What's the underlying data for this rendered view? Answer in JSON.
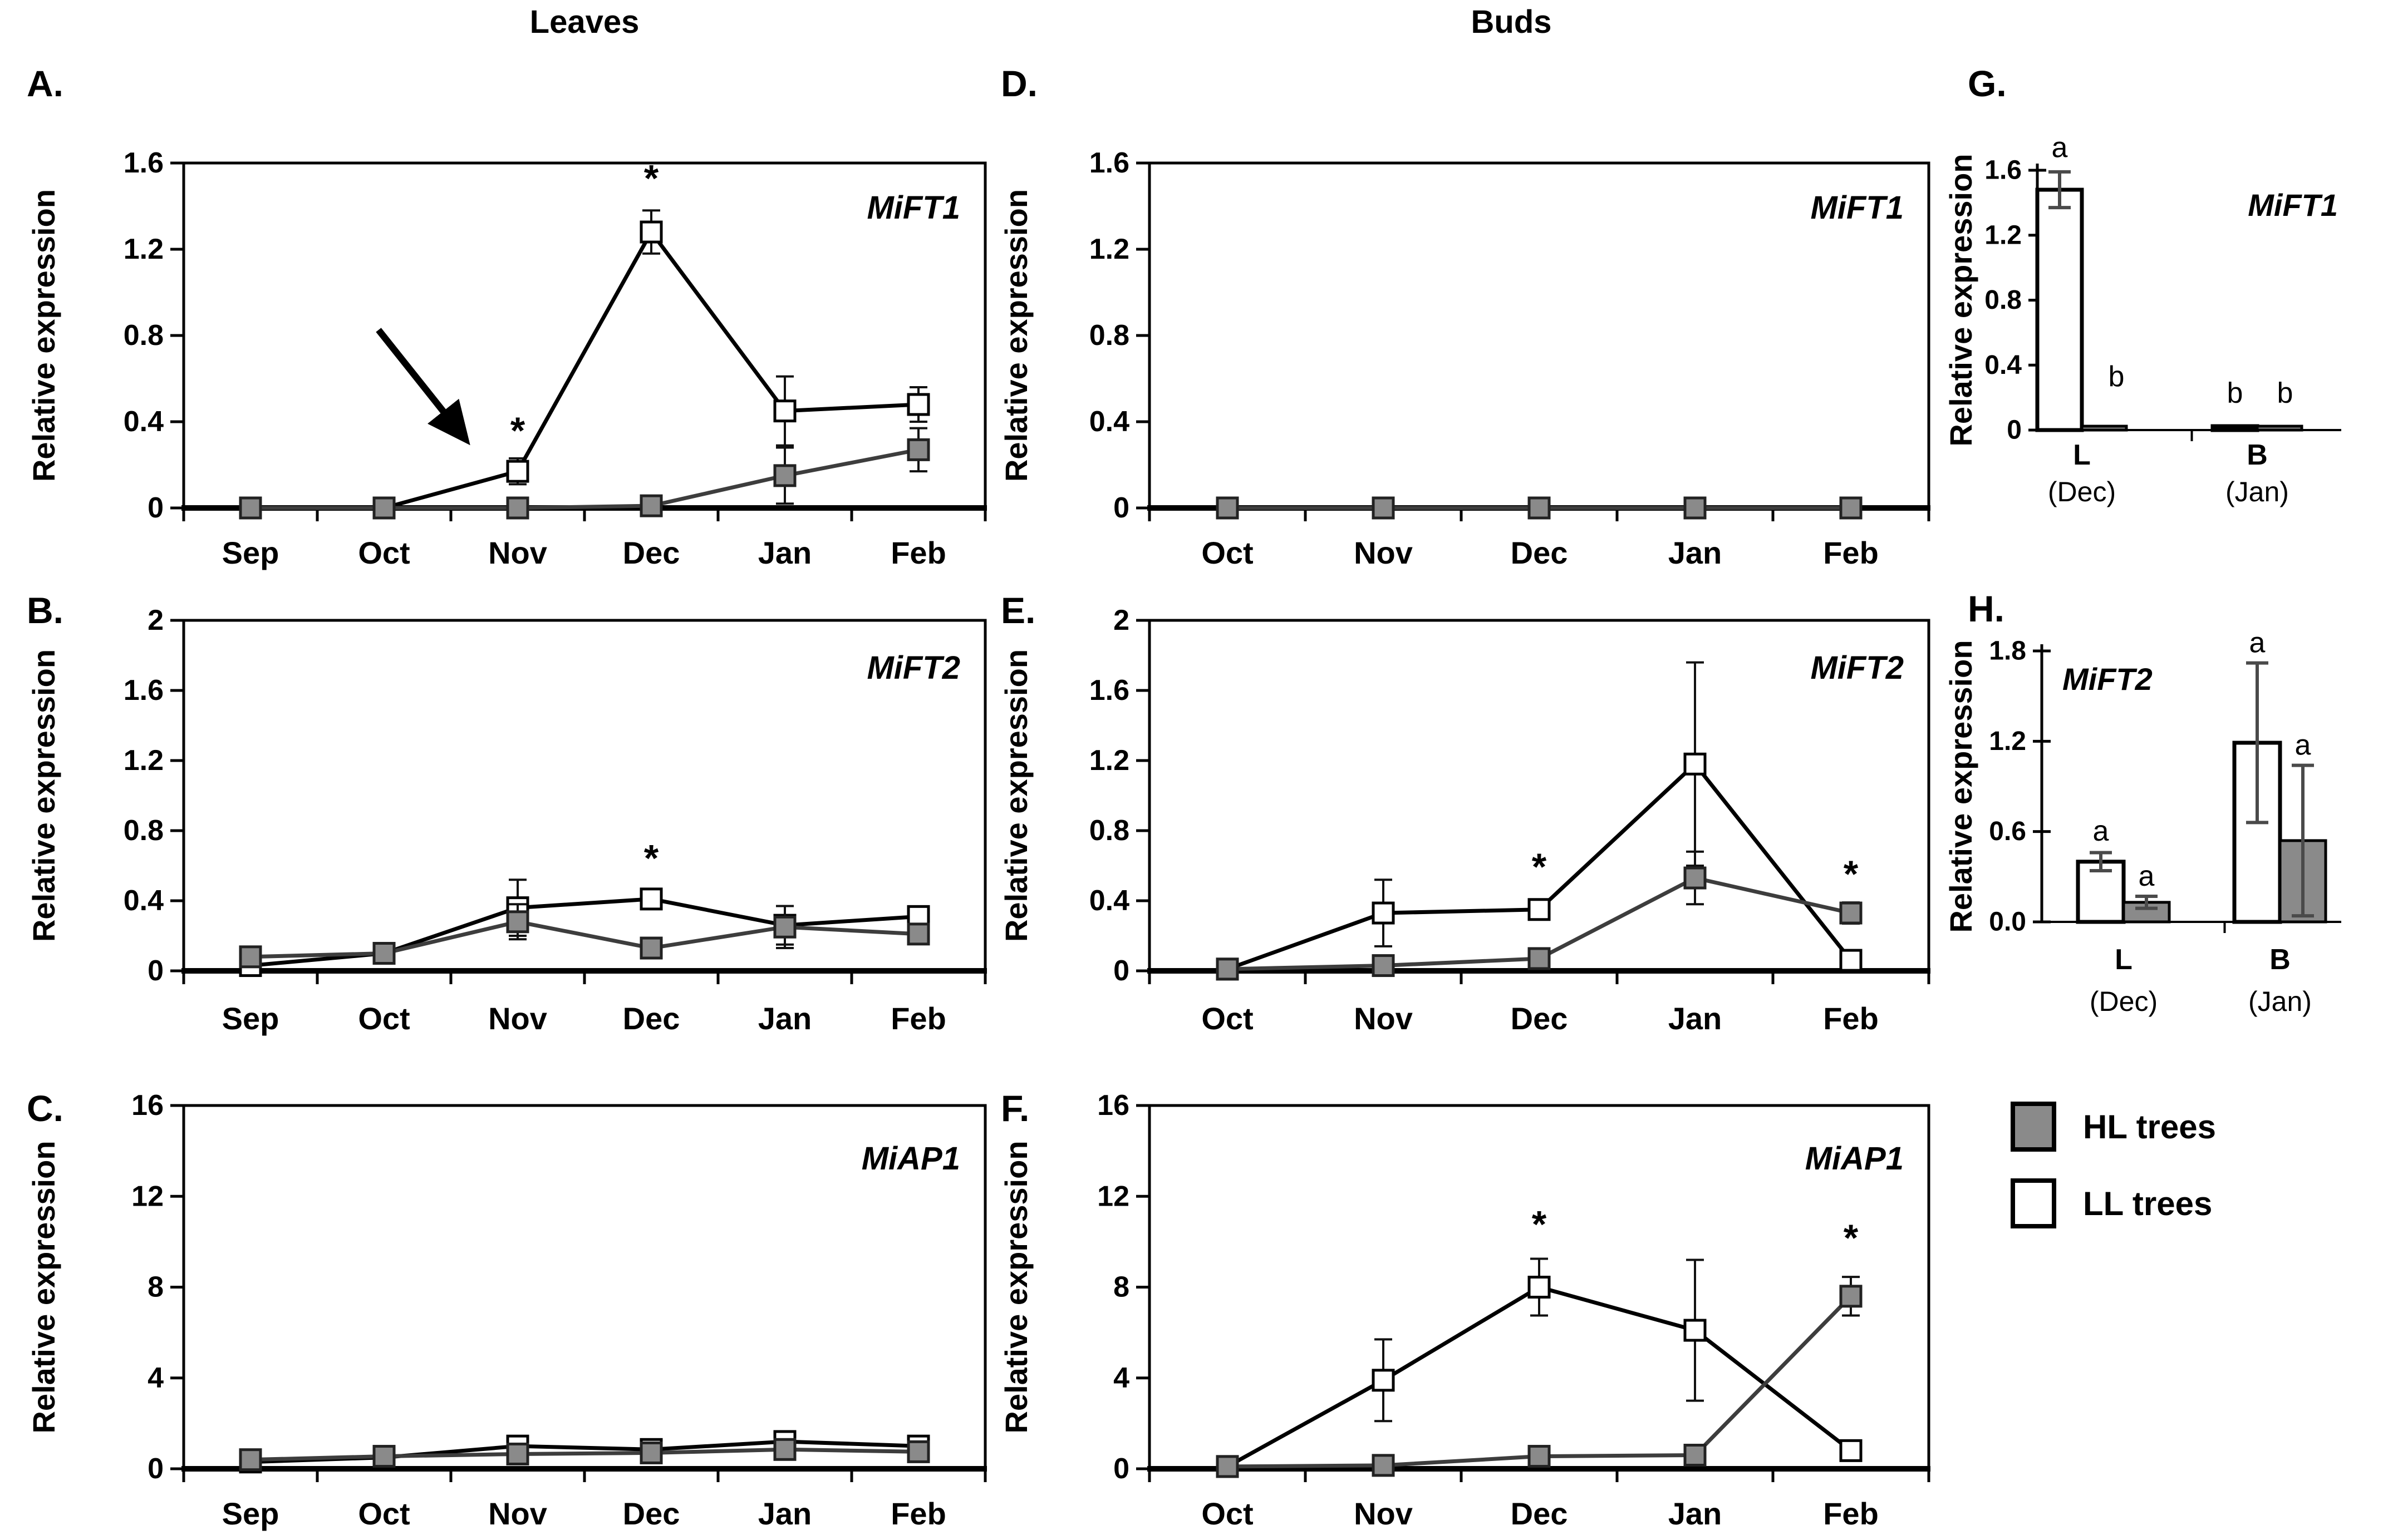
{
  "headers": {
    "left": "Leaves",
    "right": "Buds"
  },
  "legend": {
    "items": [
      {
        "key": "HL",
        "label": "HL trees",
        "swatch": "#8a8a8a"
      },
      {
        "key": "LL",
        "label": "LL trees",
        "swatch": "#ffffff"
      }
    ]
  },
  "colors": {
    "ll_fill": "#ffffff",
    "hl_fill": "#8a8a8a",
    "ll_line": "#000000",
    "hl_line": "#3d3d3d",
    "err": "#111111",
    "bar_err": "#4a4a4a"
  },
  "chart_data": [
    {
      "id": "A",
      "panel_label": "A.",
      "type": "line",
      "title": "MiFT1",
      "ylabel": "Relative expression",
      "categories": [
        "Sep",
        "Oct",
        "Nov",
        "Dec",
        "Jan",
        "Feb"
      ],
      "ylim": [
        0,
        1.6
      ],
      "yticks": [
        "0",
        "0.4",
        "0.8",
        "1.2",
        "1.6"
      ],
      "series": [
        {
          "key": "LL",
          "name": "LL trees",
          "values": [
            0,
            0,
            0.17,
            1.28,
            0.45,
            0.48
          ],
          "errors": [
            0,
            0,
            0.06,
            0.1,
            0.16,
            0.08
          ]
        },
        {
          "key": "HL",
          "name": "HL trees",
          "values": [
            0,
            0,
            0,
            0.01,
            0.15,
            0.27
          ],
          "errors": [
            0,
            0,
            0,
            0,
            0.13,
            0.1
          ]
        }
      ],
      "asterisks": [
        {
          "i": 2,
          "y": 0.3
        },
        {
          "i": 3,
          "y": 1.47
        }
      ],
      "arrow": {
        "from": [
          640,
          515
        ],
        "to": [
          795,
          710
        ]
      }
    },
    {
      "id": "B",
      "panel_label": "B.",
      "type": "line",
      "title": "MiFT2",
      "ylabel": "Relative expression",
      "categories": [
        "Sep",
        "Oct",
        "Nov",
        "Dec",
        "Jan",
        "Feb"
      ],
      "ylim": [
        0,
        2
      ],
      "yticks": [
        "0",
        "0.4",
        "0.8",
        "1.2",
        "1.6",
        "2"
      ],
      "series": [
        {
          "key": "LL",
          "name": "LL trees",
          "values": [
            0.03,
            0.1,
            0.36,
            0.41,
            0.26,
            0.31
          ],
          "errors": [
            0.02,
            0.02,
            0.16,
            0.03,
            0.11,
            0.04
          ]
        },
        {
          "key": "HL",
          "name": "HL trees",
          "values": [
            0.08,
            0.1,
            0.28,
            0.13,
            0.25,
            0.21
          ],
          "errors": [
            0.03,
            0.02,
            0.1,
            0.02,
            0.12,
            0.05
          ]
        }
      ],
      "asterisks": [
        {
          "i": 3,
          "y": 0.57
        }
      ]
    },
    {
      "id": "C",
      "panel_label": "C.",
      "type": "line",
      "title": "MiAP1",
      "ylabel": "Relative expression",
      "categories": [
        "Sep",
        "Oct",
        "Nov",
        "Dec",
        "Jan",
        "Feb"
      ],
      "ylim": [
        0,
        16
      ],
      "yticks": [
        "0",
        "4",
        "8",
        "12",
        "16"
      ],
      "series": [
        {
          "key": "LL",
          "name": "LL trees",
          "values": [
            0.3,
            0.5,
            1.0,
            0.85,
            1.2,
            1.0
          ],
          "errors": [
            0.15,
            0.1,
            0.2,
            0.15,
            0.25,
            0.2
          ]
        },
        {
          "key": "HL",
          "name": "HL trees",
          "values": [
            0.4,
            0.55,
            0.65,
            0.7,
            0.85,
            0.75
          ],
          "errors": [
            0.1,
            0.1,
            0.15,
            0.1,
            0.2,
            0.15
          ]
        }
      ],
      "asterisks": []
    },
    {
      "id": "D",
      "panel_label": "D.",
      "type": "line",
      "title": "MiFT1",
      "ylabel": "Relative expression",
      "categories": [
        "Oct",
        "Nov",
        "Dec",
        "Jan",
        "Feb"
      ],
      "ylim": [
        0,
        1.6
      ],
      "yticks": [
        "0",
        "0.4",
        "0.8",
        "1.2",
        "1.6"
      ],
      "series": [
        {
          "key": "LL",
          "name": "LL trees",
          "values": [
            0,
            0,
            0,
            0,
            0
          ],
          "errors": [
            0,
            0,
            0,
            0,
            0
          ]
        },
        {
          "key": "HL",
          "name": "HL trees",
          "values": [
            0,
            0,
            0,
            0,
            0
          ],
          "errors": [
            0,
            0,
            0,
            0,
            0
          ]
        }
      ],
      "asterisks": []
    },
    {
      "id": "E",
      "panel_label": "E.",
      "type": "line",
      "title": "MiFT2",
      "ylabel": "Relative expression",
      "categories": [
        "Oct",
        "Nov",
        "Dec",
        "Jan",
        "Feb"
      ],
      "ylim": [
        0,
        2
      ],
      "yticks": [
        "0",
        "0.4",
        "0.8",
        "1.2",
        "1.6",
        "2"
      ],
      "series": [
        {
          "key": "LL",
          "name": "LL trees",
          "values": [
            0.01,
            0.33,
            0.35,
            1.18,
            0.06
          ],
          "errors": [
            0,
            0.19,
            0.05,
            0.58,
            0
          ]
        },
        {
          "key": "HL",
          "name": "HL trees",
          "values": [
            0.01,
            0.03,
            0.07,
            0.53,
            0.33
          ],
          "errors": [
            0,
            0.01,
            0.04,
            0.15,
            0.06
          ]
        }
      ],
      "asterisks": [
        {
          "i": 2,
          "y": 0.52
        },
        {
          "i": 4,
          "y": 0.48
        }
      ]
    },
    {
      "id": "F",
      "panel_label": "F.",
      "type": "line",
      "title": "MiAP1",
      "ylabel": "Relative expression",
      "categories": [
        "Oct",
        "Nov",
        "Dec",
        "Jan",
        "Feb"
      ],
      "ylim": [
        0,
        16
      ],
      "yticks": [
        "0",
        "4",
        "8",
        "12",
        "16"
      ],
      "series": [
        {
          "key": "LL",
          "name": "LL trees",
          "values": [
            0.1,
            3.9,
            8.0,
            6.1,
            0.8
          ],
          "errors": [
            0,
            1.8,
            1.25,
            3.1,
            0
          ]
        },
        {
          "key": "HL",
          "name": "HL trees",
          "values": [
            0.1,
            0.15,
            0.55,
            0.6,
            7.6
          ],
          "errors": [
            0,
            0,
            0,
            0,
            0.85
          ]
        }
      ],
      "asterisks": [
        {
          "i": 2,
          "y": 10.2
        },
        {
          "i": 4,
          "y": 9.6
        }
      ]
    },
    {
      "id": "G",
      "panel_label": "G.",
      "type": "bar",
      "title": "MiFT1",
      "ylabel": "Relative expression",
      "groups": [
        {
          "line1": "L",
          "line2": "(Dec)"
        },
        {
          "line1": "B",
          "line2": "(Jan)"
        }
      ],
      "ylim": [
        0,
        1.6
      ],
      "yticks": [
        "0",
        "0.4",
        "0.8",
        "1.2",
        "1.6"
      ],
      "series": [
        {
          "key": "LL",
          "name": "LL trees",
          "values": [
            1.48,
            0.01
          ],
          "errors": [
            0.11,
            0
          ]
        },
        {
          "key": "HL",
          "name": "HL trees",
          "values": [
            0.01,
            0.01
          ],
          "errors": [
            0,
            0
          ]
        }
      ],
      "letters": [
        {
          "group": 0,
          "series": "LL",
          "text": "a",
          "y": 1.68,
          "dx": 0
        },
        {
          "group": 0,
          "series": "HL",
          "text": "b",
          "y": 0.27,
          "dx": 22
        },
        {
          "group": 1,
          "series": "LL",
          "text": "b",
          "y": 0.17,
          "dx": 0
        },
        {
          "group": 1,
          "series": "HL",
          "text": "b",
          "y": 0.17,
          "dx": 10
        }
      ]
    },
    {
      "id": "H",
      "panel_label": "H.",
      "type": "bar",
      "title": "MiFT2",
      "ylabel": "Relative expression",
      "groups": [
        {
          "line1": "L",
          "line2": "(Dec)"
        },
        {
          "line1": "B",
          "line2": "(Jan)"
        }
      ],
      "ylim": [
        0,
        1.8
      ],
      "yticks": [
        "0.0",
        "0.6",
        "1.2",
        "1.8"
      ],
      "series": [
        {
          "key": "LL",
          "name": "LL trees",
          "values": [
            0.4,
            1.19
          ],
          "errors": [
            0.06,
            0.53
          ]
        },
        {
          "key": "HL",
          "name": "HL trees",
          "values": [
            0.13,
            0.54
          ],
          "errors": [
            0.04,
            0.5
          ]
        }
      ],
      "letters": [
        {
          "group": 0,
          "series": "LL",
          "text": "a",
          "y": 0.54,
          "dx": 0
        },
        {
          "group": 0,
          "series": "HL",
          "text": "a",
          "y": 0.24,
          "dx": 0
        },
        {
          "group": 1,
          "series": "LL",
          "text": "a",
          "y": 1.79,
          "dx": 0
        },
        {
          "group": 1,
          "series": "HL",
          "text": "a",
          "y": 1.11,
          "dx": 0
        }
      ]
    }
  ]
}
